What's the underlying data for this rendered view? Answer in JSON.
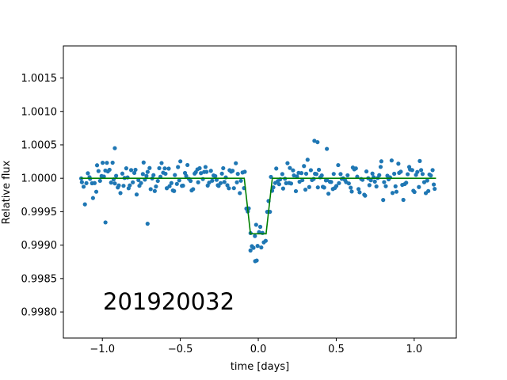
{
  "chart_data": {
    "type": "scatter",
    "xlabel": "time [days]",
    "ylabel": "Relative flux",
    "xlim": [
      -1.25,
      1.27
    ],
    "ylim": [
      0.99761,
      1.00198
    ],
    "xticks": [
      -1.0,
      -0.5,
      0.0,
      0.5,
      1.0
    ],
    "xtick_labels": [
      "−1.0",
      "−0.5",
      "0.0",
      "0.5",
      "1.0"
    ],
    "yticks": [
      0.998,
      0.9985,
      0.999,
      0.9995,
      1.0,
      1.0005,
      1.001,
      1.0015
    ],
    "ytick_labels": [
      "0.9980",
      "0.9985",
      "0.9990",
      "0.9995",
      "1.0000",
      "1.0005",
      "1.0010",
      "1.0015"
    ],
    "annotation": "201920032",
    "grid": false,
    "colors": {
      "points": "#1f77b4",
      "model": "#008000"
    },
    "series": [
      {
        "kind": "points",
        "seed": 201920032,
        "x_range": [
          -1.14,
          1.14
        ],
        "count": 260,
        "scatter_sigma": 0.00023,
        "outliers": [
          {
            "x": -0.98,
            "y": 0.99934
          },
          {
            "x": -0.71,
            "y": 0.99932
          },
          {
            "x": -0.05,
            "y": 0.99892
          },
          {
            "x": -0.02,
            "y": 0.99876
          },
          {
            "x": -0.01,
            "y": 0.99877
          },
          {
            "x": 0.36,
            "y": 1.00056
          },
          {
            "x": 0.38,
            "y": 1.00054
          },
          {
            "x": 0.44,
            "y": 1.00044
          },
          {
            "x": -0.92,
            "y": 1.00045
          }
        ]
      },
      {
        "kind": "model",
        "x": [
          -1.14,
          -0.09,
          -0.05,
          0.05,
          0.09,
          1.14
        ],
        "y": [
          1.0,
          1.0,
          0.99917,
          0.99917,
          1.0,
          1.0
        ]
      }
    ]
  }
}
